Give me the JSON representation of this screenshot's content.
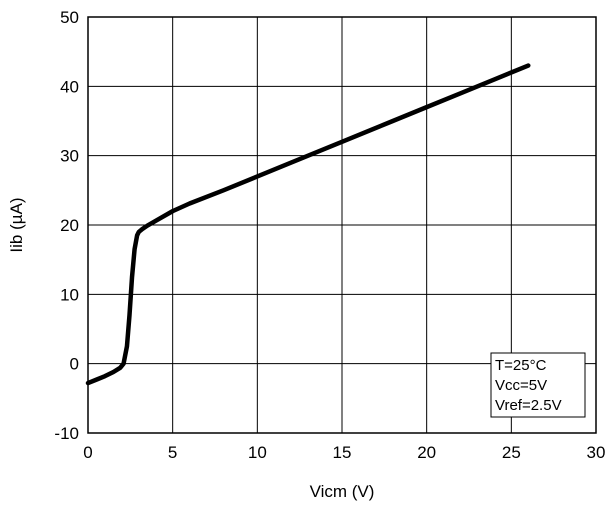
{
  "chart_data": {
    "type": "line",
    "xlabel": "Vicm (V)",
    "ylabel": "Iib (µA)",
    "xlim": [
      0,
      30
    ],
    "ylim": [
      -10,
      50
    ],
    "xticks": [
      0,
      5,
      10,
      15,
      20,
      25,
      30
    ],
    "yticks": [
      -10,
      0,
      10,
      20,
      30,
      40,
      50
    ],
    "xtick_labels": [
      "0",
      "5",
      "10",
      "15",
      "20",
      "25",
      "30"
    ],
    "ytick_labels": [
      "-10",
      "0",
      "10",
      "20",
      "30",
      "40",
      "50"
    ],
    "grid": true,
    "legend_position": "bottom-right",
    "annotation_lines": [
      "T=25°C",
      "Vcc=5V",
      "Vref=2.5V"
    ],
    "series": [
      {
        "color": "#000000",
        "x": [
          0,
          0.5,
          1.0,
          1.5,
          1.9,
          2.1,
          2.3,
          2.45,
          2.6,
          2.75,
          2.9,
          3.0,
          3.2,
          3.5,
          4,
          5,
          6,
          8,
          10,
          12,
          15,
          18,
          20,
          22,
          24,
          26
        ],
        "y": [
          -2.8,
          -2.3,
          -1.8,
          -1.2,
          -0.6,
          0.0,
          2.5,
          7.0,
          12.5,
          16.5,
          18.5,
          19.0,
          19.4,
          19.9,
          20.6,
          22.0,
          23.1,
          25.0,
          27.0,
          29.0,
          32.0,
          35.0,
          37.0,
          39.0,
          41.0,
          43.0
        ]
      }
    ]
  }
}
